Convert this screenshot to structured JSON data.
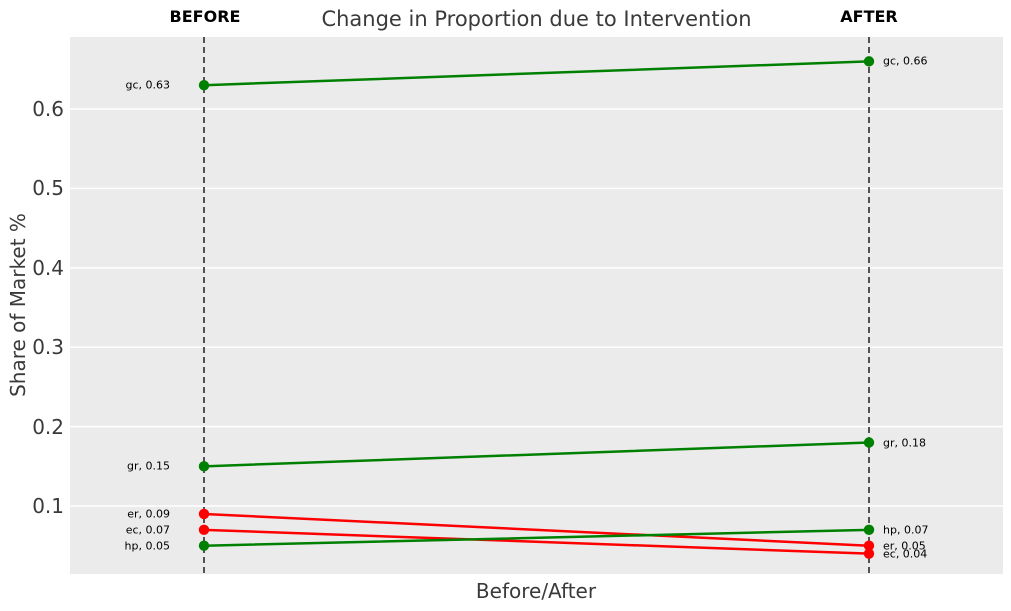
{
  "chart_data": {
    "type": "line",
    "subtype": "slope-chart",
    "title": "Change in Proportion due to Intervention",
    "xlabel": "Before/After",
    "ylabel": "Share of Market %",
    "columns": [
      {
        "label": "BEFORE"
      },
      {
        "label": "AFTER"
      }
    ],
    "ytick_labels": [
      "0.1",
      "0.2",
      "0.3",
      "0.4",
      "0.5",
      "0.6"
    ],
    "ytick_values": [
      0.1,
      0.2,
      0.3,
      0.4,
      0.5,
      0.6
    ],
    "ylim": [
      0.0144,
      0.6907
    ],
    "grid": true,
    "legend_position": "none",
    "colors": {
      "increase_line": "#008000",
      "decrease_line": "#ff0000",
      "panel_background": "#ebebeb",
      "gridline": "#ffffff",
      "column_rule": "#111111",
      "axis_text": "#3a3a3a",
      "annotation_text": "#000000"
    },
    "series": [
      {
        "name": "gc",
        "before": 0.63,
        "after": 0.66,
        "trend": "increase",
        "color": "#008000",
        "before_label": "gc, 0.63",
        "after_label": "gc, 0.66"
      },
      {
        "name": "gr",
        "before": 0.15,
        "after": 0.18,
        "trend": "increase",
        "color": "#008000",
        "before_label": "gr, 0.15",
        "after_label": "gr, 0.18"
      },
      {
        "name": "er",
        "before": 0.09,
        "after": 0.05,
        "trend": "decrease",
        "color": "#ff0000",
        "before_label": "er, 0.09",
        "after_label": "er, 0.05"
      },
      {
        "name": "ec",
        "before": 0.07,
        "after": 0.04,
        "trend": "decrease",
        "color": "#ff0000",
        "before_label": "ec, 0.07",
        "after_label": "ec, 0.04"
      },
      {
        "name": "hp",
        "before": 0.05,
        "after": 0.07,
        "trend": "increase",
        "color": "#008000",
        "before_label": "hp, 0.05",
        "after_label": "hp, 0.07"
      }
    ]
  }
}
